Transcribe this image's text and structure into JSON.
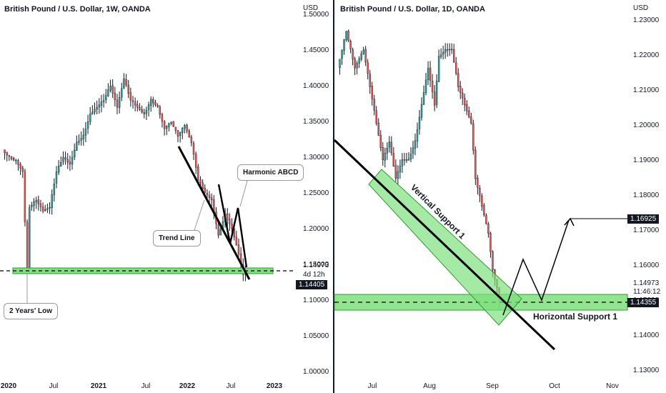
{
  "colors": {
    "up": "#26a69a",
    "down": "#ef5350",
    "zone_fill": "#7ee07e",
    "zone_stroke": "#2e9d2e",
    "line": "#000000",
    "tag_bg": "#131722"
  },
  "left": {
    "title": "British Pound / U.S. Dollar, 1W, OANDA",
    "currency": "USD",
    "y_ticks": [
      "1.50000",
      "1.45000",
      "1.40000",
      "1.35000",
      "1.30000",
      "1.25000",
      "1.20000",
      "1.15000",
      "1.10000",
      "1.05000",
      "1.00000"
    ],
    "x_ticks": [
      "2020",
      "Jul",
      "2021",
      "Jul",
      "2022",
      "Jul",
      "2023"
    ],
    "last_price": "1.14973",
    "countdown": "4d 12h",
    "support_price": "1.14405",
    "callouts": {
      "years_low": "2 Years' Low",
      "trend_line": "Trend Line",
      "harmonic": "Harmonic ABCD"
    }
  },
  "right": {
    "title": "British Pound / U.S. Dollar, 1D, OANDA",
    "currency": "USD",
    "y_ticks": [
      "1.23000",
      "1.22000",
      "1.21000",
      "1.20000",
      "1.19000",
      "1.18000",
      "1.17000",
      "1.16000",
      "1.15000",
      "1.14000",
      "1.13000"
    ],
    "x_ticks": [
      "Jul",
      "Aug",
      "Sep",
      "Oct",
      "Nov"
    ],
    "last_price": "1.14973",
    "countdown": "11:46:12",
    "support_price": "1.14355",
    "target_price": "1.16925",
    "labels": {
      "vertical_support": "Vertical Support 1",
      "horizontal_support": "Horizontal Support 1"
    }
  },
  "chart_data": [
    {
      "type": "candlestick",
      "title": "British Pound / U.S. Dollar, 1W, OANDA",
      "ylabel": "USD",
      "ylim": [
        0.99,
        1.53
      ],
      "x_range": [
        "2020",
        "2023"
      ],
      "grid": false,
      "points": [
        [
          0,
          1.32
        ],
        [
          3,
          1.31
        ],
        [
          6,
          1.305
        ],
        [
          9,
          1.29
        ],
        [
          11,
          1.15
        ],
        [
          12,
          1.24
        ],
        [
          15,
          1.25
        ],
        [
          18,
          1.235
        ],
        [
          21,
          1.24
        ],
        [
          24,
          1.29
        ],
        [
          27,
          1.31
        ],
        [
          30,
          1.3
        ],
        [
          33,
          1.33
        ],
        [
          36,
          1.34
        ],
        [
          39,
          1.37
        ],
        [
          42,
          1.38
        ],
        [
          45,
          1.39
        ],
        [
          48,
          1.41
        ],
        [
          51,
          1.38
        ],
        [
          54,
          1.42
        ],
        [
          57,
          1.39
        ],
        [
          60,
          1.38
        ],
        [
          63,
          1.37
        ],
        [
          66,
          1.39
        ],
        [
          69,
          1.38
        ],
        [
          72,
          1.35
        ],
        [
          75,
          1.36
        ],
        [
          78,
          1.34
        ],
        [
          81,
          1.355
        ],
        [
          84,
          1.33
        ],
        [
          87,
          1.28
        ],
        [
          90,
          1.26
        ],
        [
          93,
          1.25
        ],
        [
          96,
          1.2
        ],
        [
          99,
          1.23
        ],
        [
          102,
          1.21
        ],
        [
          105,
          1.175
        ],
        [
          107,
          1.145
        ],
        [
          108,
          1.1497
        ]
      ],
      "two_years_low": 1.144,
      "horizontal_support": 1.144,
      "last_price": 1.14973
    },
    {
      "type": "candlestick",
      "title": "British Pound / U.S. Dollar, 1D, OANDA",
      "ylabel": "USD",
      "ylim": [
        1.1265,
        1.2335
      ],
      "x_range": [
        "Jul",
        "Nov"
      ],
      "grid": false,
      "points": [
        [
          0,
          1.215
        ],
        [
          4,
          1.225
        ],
        [
          8,
          1.215
        ],
        [
          12,
          1.22
        ],
        [
          15,
          1.21
        ],
        [
          18,
          1.2
        ],
        [
          21,
          1.19
        ],
        [
          24,
          1.195
        ],
        [
          27,
          1.185
        ],
        [
          30,
          1.19
        ],
        [
          33,
          1.19
        ],
        [
          36,
          1.195
        ],
        [
          39,
          1.205
        ],
        [
          42,
          1.215
        ],
        [
          45,
          1.205
        ],
        [
          47,
          1.218
        ],
        [
          50,
          1.22
        ],
        [
          53,
          1.22
        ],
        [
          56,
          1.21
        ],
        [
          59,
          1.205
        ],
        [
          62,
          1.2
        ],
        [
          64,
          1.185
        ],
        [
          66,
          1.18
        ],
        [
          68,
          1.175
        ],
        [
          70,
          1.17
        ],
        [
          72,
          1.16
        ],
        [
          74,
          1.155
        ],
        [
          75,
          1.15
        ]
      ],
      "projection": [
        [
          74,
          1.15
        ],
        [
          78,
          1.158
        ],
        [
          83,
          1.145
        ],
        [
          91,
          1.169
        ]
      ],
      "target": 1.16925,
      "horizontal_support": 1.14355,
      "last_price": 1.14973
    }
  ]
}
